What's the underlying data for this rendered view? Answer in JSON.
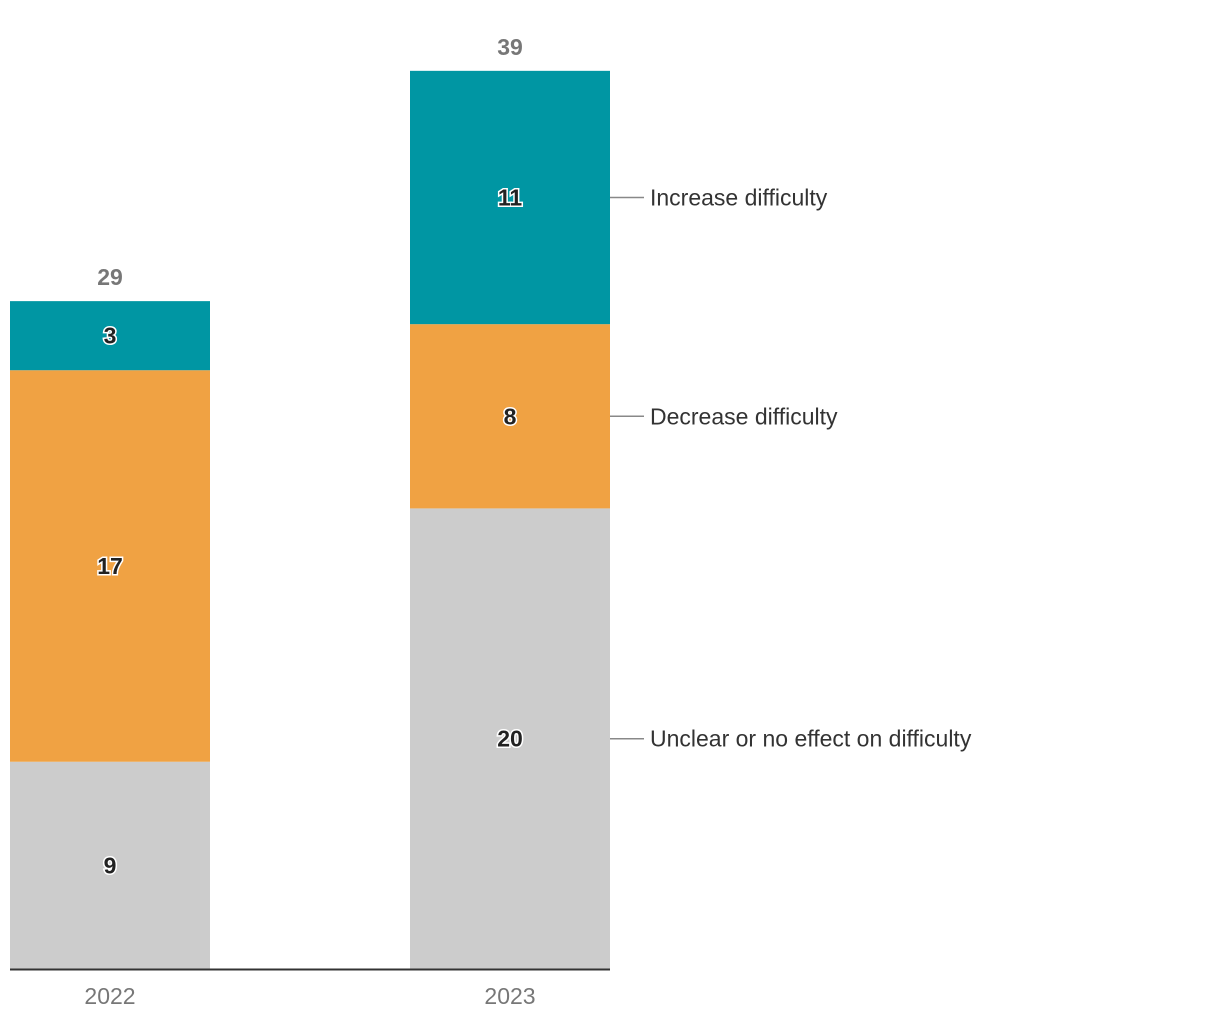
{
  "chart_data": {
    "type": "bar",
    "stacked": true,
    "categories": [
      "2022",
      "2023"
    ],
    "series": [
      {
        "name": "Unclear or no effect on difficulty",
        "values": [
          9,
          20
        ],
        "color": "#cccccc"
      },
      {
        "name": "Decrease difficulty",
        "values": [
          17,
          8
        ],
        "color": "#f0a243"
      },
      {
        "name": "Increase difficulty",
        "values": [
          3,
          11
        ],
        "color": "#0096a3"
      }
    ],
    "totals": [
      29,
      39
    ],
    "title": "",
    "xlabel": "",
    "ylabel": "",
    "ylim": [
      0,
      39
    ],
    "grid": false,
    "legend": "right, labels aligned with the 2023 bar segments",
    "colors": {
      "axis": "#333333",
      "total_label": "#777777",
      "tick_label": "#777777",
      "segment_label": "#222222",
      "legend_line": "#888888",
      "legend_text": "#333333"
    }
  }
}
